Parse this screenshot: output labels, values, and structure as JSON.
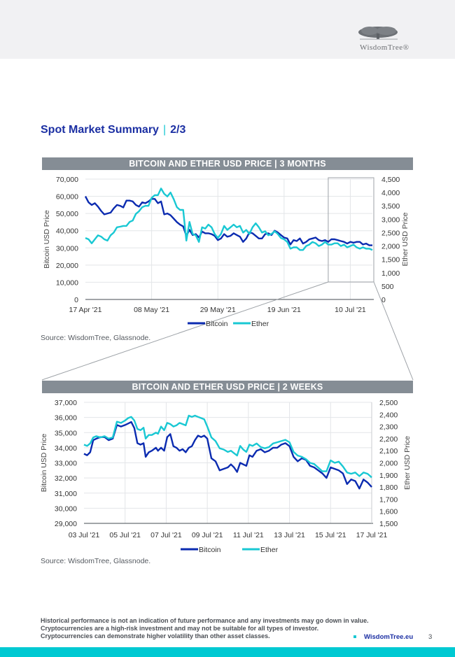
{
  "header": {
    "logo_text": "WisdomTree®",
    "logo_icon": "tree-icon"
  },
  "page_title": {
    "main": "Spot Market Summary",
    "separator": "|",
    "page_fraction": "2/3"
  },
  "colors": {
    "bitcoin": "#0b2bb0",
    "ether": "#19c8d3",
    "heading_bar": "#858d95",
    "title_blue": "#1b2fa3",
    "accent_teal": "#00c9d2"
  },
  "chart_data": [
    {
      "type": "line",
      "title": "BITCOIN AND ETHER USD PRICE  |  3 MONTHS",
      "xlabel": "",
      "ylabel": "Bitcoin USD Price",
      "ylabel_right": "Ether USD Price",
      "ylim": [
        0,
        70000
      ],
      "ylim_right": [
        0,
        4500
      ],
      "yticks": [
        "0",
        "10,000",
        "20,000",
        "30,000",
        "40,000",
        "50,000",
        "60,000",
        "70,000"
      ],
      "yticks_right": [
        "0",
        "500",
        "1,000",
        "1,500",
        "2,000",
        "2,500",
        "3,000",
        "3,500",
        "4,000",
        "4,500"
      ],
      "xticks": [
        "17 Apr '21",
        "08 May '21",
        "29 May '21",
        "19 Jun '21",
        "10 Jul '21"
      ],
      "x_range_days": [
        0,
        91
      ],
      "grid": true,
      "legend": [
        "Bitcoin",
        "Ether"
      ],
      "legend_position": "bottom",
      "highlight_region": "last two weeks (03 Jul '21 - 17 Jul '21)",
      "series": [
        {
          "name": "Bitcoin",
          "axis": "left",
          "x": [
            0,
            1,
            2,
            3,
            4,
            5,
            6,
            7,
            8,
            9,
            10,
            11,
            12,
            13,
            14,
            15,
            16,
            17,
            18,
            19,
            20,
            21,
            22,
            23,
            24,
            25,
            26,
            27,
            28,
            29,
            30,
            31,
            32,
            33,
            34,
            35,
            36,
            37,
            38,
            39,
            40,
            41,
            42,
            43,
            44,
            45,
            46,
            47,
            48,
            49,
            50,
            51,
            52,
            53,
            54,
            55,
            56,
            57,
            58,
            59,
            60,
            61,
            62,
            63,
            64,
            65,
            66,
            67,
            68,
            69,
            70,
            71,
            72,
            73,
            74,
            75,
            76,
            77,
            78,
            79,
            80,
            81,
            82,
            83,
            84,
            85,
            86,
            87,
            88,
            89,
            90,
            91
          ],
          "values": [
            60000,
            56500,
            55000,
            56000,
            54000,
            51500,
            49500,
            50000,
            50500,
            53000,
            55000,
            54500,
            53500,
            57500,
            57500,
            57000,
            55000,
            54000,
            56500,
            56000,
            57000,
            58500,
            58500,
            56000,
            57000,
            49500,
            50000,
            49000,
            47000,
            45000,
            43500,
            42500,
            37000,
            40500,
            37500,
            38000,
            36000,
            39500,
            38500,
            38500,
            38000,
            37000,
            34500,
            35500,
            38000,
            36500,
            37000,
            38500,
            37500,
            36500,
            33500,
            35500,
            39000,
            38500,
            37000,
            35500,
            35500,
            38000,
            38500,
            37500,
            40000,
            39000,
            37500,
            36000,
            35500,
            32000,
            34500,
            34000,
            35500,
            32500,
            33500,
            35000,
            35500,
            36000,
            34500,
            34000,
            34500,
            33500,
            35000,
            35000,
            34500,
            34000,
            33500,
            32500,
            33500,
            33000,
            33500,
            33500,
            32000,
            32500,
            31500,
            31500
          ]
        },
        {
          "name": "Ether",
          "axis": "right",
          "x": [
            0,
            1,
            2,
            3,
            4,
            5,
            6,
            7,
            8,
            9,
            10,
            11,
            12,
            13,
            14,
            15,
            16,
            17,
            18,
            19,
            20,
            21,
            22,
            23,
            24,
            25,
            26,
            27,
            28,
            29,
            30,
            31,
            32,
            33,
            34,
            35,
            36,
            37,
            38,
            39,
            40,
            41,
            42,
            43,
            44,
            45,
            46,
            47,
            48,
            49,
            50,
            51,
            52,
            53,
            54,
            55,
            56,
            57,
            58,
            59,
            60,
            61,
            62,
            63,
            64,
            65,
            66,
            67,
            68,
            69,
            70,
            71,
            72,
            73,
            74,
            75,
            76,
            77,
            78,
            79,
            80,
            81,
            82,
            83,
            84,
            85,
            86,
            87,
            88,
            89,
            90,
            91
          ],
          "values": [
            2300,
            2250,
            2100,
            2250,
            2400,
            2350,
            2250,
            2200,
            2400,
            2500,
            2700,
            2720,
            2750,
            2750,
            2900,
            2950,
            3200,
            3300,
            3450,
            3500,
            3500,
            3800,
            3900,
            3900,
            4150,
            3950,
            3850,
            4000,
            3750,
            3450,
            3350,
            3350,
            2200,
            2900,
            2450,
            2400,
            2150,
            2700,
            2650,
            2800,
            2700,
            2450,
            2300,
            2450,
            2750,
            2600,
            2700,
            2800,
            2700,
            2750,
            2500,
            2600,
            2450,
            2700,
            2850,
            2700,
            2500,
            2550,
            2400,
            2450,
            2550,
            2450,
            2300,
            2250,
            2150,
            1900,
            1950,
            1950,
            1850,
            1850,
            2000,
            2050,
            2150,
            2100,
            2000,
            2050,
            2150,
            2050,
            2050,
            2100,
            2100,
            2000,
            2050,
            1950,
            2000,
            2050,
            1950,
            1900,
            1950,
            1900,
            1900,
            1850
          ]
        }
      ]
    },
    {
      "type": "line",
      "title": "BITCOIN AND ETHER USD PRICE  |  2 WEEKS",
      "xlabel": "",
      "ylabel": "Bitcoin USD Price",
      "ylabel_right": "Ether USD Price",
      "ylim": [
        29000,
        37000
      ],
      "ylim_right": [
        1500,
        2500
      ],
      "yticks": [
        "29,000",
        "30,000",
        "31,000",
        "32,000",
        "33,000",
        "34,000",
        "35,000",
        "36,000",
        "37,000"
      ],
      "yticks_right": [
        "1,500",
        "1,600",
        "1,700",
        "1,800",
        "1,900",
        "2,000",
        "2,100",
        "2,200",
        "2,300",
        "2,400",
        "2,500"
      ],
      "xticks": [
        "03 Jul '21",
        "05 Jul '21",
        "07 Jul '21",
        "09 Jul '21",
        "11 Jul '21",
        "13 Jul '21",
        "15 Jul '21",
        "17 Jul '21"
      ],
      "x_range_days": [
        0,
        14
      ],
      "grid": true,
      "legend": [
        "Bitcoin",
        "Ether"
      ],
      "legend_position": "bottom",
      "series": [
        {
          "name": "Bitcoin",
          "axis": "left",
          "x": [
            0,
            0.15,
            0.3,
            0.45,
            0.6,
            0.8,
            1.0,
            1.2,
            1.4,
            1.6,
            1.8,
            2.0,
            2.15,
            2.3,
            2.45,
            2.6,
            2.75,
            2.9,
            3.0,
            3.15,
            3.3,
            3.5,
            3.6,
            3.75,
            3.9,
            4.05,
            4.2,
            4.35,
            4.5,
            4.65,
            4.8,
            4.95,
            5.1,
            5.25,
            5.4,
            5.55,
            5.7,
            5.85,
            6.0,
            6.2,
            6.4,
            6.6,
            6.8,
            7.0,
            7.15,
            7.3,
            7.45,
            7.6,
            7.75,
            7.9,
            8.05,
            8.2,
            8.4,
            8.6,
            8.8,
            9.0,
            9.2,
            9.4,
            9.6,
            9.8,
            10.0,
            10.2,
            10.4,
            10.6,
            10.8,
            11.0,
            11.2,
            11.4,
            11.6,
            11.8,
            12.0,
            12.2,
            12.4,
            12.6,
            12.8,
            13.0,
            13.2,
            13.4,
            13.6,
            13.8,
            14.0
          ],
          "values": [
            33600,
            33500,
            33700,
            34500,
            34600,
            34700,
            34700,
            34500,
            34600,
            35500,
            35400,
            35500,
            35600,
            35700,
            35300,
            34300,
            34200,
            34300,
            33400,
            33700,
            33800,
            34000,
            33800,
            34000,
            33800,
            34700,
            34900,
            34100,
            34000,
            33800,
            33900,
            33700,
            34000,
            34100,
            34500,
            34800,
            34700,
            34800,
            34600,
            33300,
            33100,
            32500,
            32600,
            32700,
            32900,
            32700,
            32400,
            33000,
            32900,
            32800,
            33500,
            33400,
            33800,
            33900,
            33700,
            33800,
            34000,
            34000,
            34200,
            34300,
            34100,
            33400,
            33100,
            33300,
            33200,
            32800,
            32700,
            32500,
            32300,
            32000,
            32700,
            32600,
            32500,
            32300,
            31600,
            31900,
            31800,
            31300,
            31900,
            31700,
            31400
          ]
        },
        {
          "name": "Ether",
          "axis": "right",
          "x": [
            0,
            0.15,
            0.3,
            0.45,
            0.6,
            0.8,
            1.0,
            1.2,
            1.4,
            1.6,
            1.8,
            2.0,
            2.15,
            2.3,
            2.45,
            2.6,
            2.75,
            2.9,
            3.0,
            3.15,
            3.3,
            3.5,
            3.6,
            3.75,
            3.9,
            4.05,
            4.2,
            4.35,
            4.5,
            4.65,
            4.8,
            4.95,
            5.1,
            5.25,
            5.4,
            5.55,
            5.7,
            5.85,
            6.0,
            6.2,
            6.4,
            6.6,
            6.8,
            7.0,
            7.15,
            7.3,
            7.45,
            7.6,
            7.75,
            7.9,
            8.05,
            8.2,
            8.4,
            8.6,
            8.8,
            9.0,
            9.2,
            9.4,
            9.6,
            9.8,
            10.0,
            10.2,
            10.4,
            10.6,
            10.8,
            11.0,
            11.2,
            11.4,
            11.6,
            11.8,
            12.0,
            12.2,
            12.4,
            12.6,
            12.8,
            13.0,
            13.2,
            13.4,
            13.6,
            13.8,
            14.0
          ],
          "values": [
            2150,
            2140,
            2160,
            2210,
            2220,
            2210,
            2220,
            2200,
            2210,
            2340,
            2330,
            2350,
            2370,
            2380,
            2350,
            2280,
            2270,
            2290,
            2200,
            2230,
            2230,
            2250,
            2240,
            2300,
            2270,
            2330,
            2320,
            2300,
            2310,
            2330,
            2320,
            2310,
            2390,
            2380,
            2390,
            2380,
            2370,
            2360,
            2300,
            2210,
            2180,
            2120,
            2110,
            2090,
            2100,
            2080,
            2060,
            2140,
            2110,
            2090,
            2150,
            2140,
            2160,
            2130,
            2120,
            2130,
            2160,
            2170,
            2180,
            2190,
            2170,
            2090,
            2060,
            2050,
            2030,
            2000,
            1990,
            1960,
            1930,
            1930,
            2020,
            2000,
            2010,
            1970,
            1920,
            1910,
            1920,
            1890,
            1920,
            1910,
            1880
          ]
        }
      ]
    }
  ],
  "sources": {
    "chart1": "Source: WisdomTree, Glassnode.",
    "chart2": "Source: WisdomTree, Glassnode."
  },
  "footer": {
    "disclaimer_lines": [
      "Historical performance is not an indication of future performance and any investments may go down in value.",
      "Cryptocurrencies are a high-risk investment and may not be suitable for all types of investor.",
      "Cryptocurrencies can demonstrate higher volatility than other asset classes."
    ],
    "link": "WisdomTree.eu",
    "page_number": "3"
  }
}
